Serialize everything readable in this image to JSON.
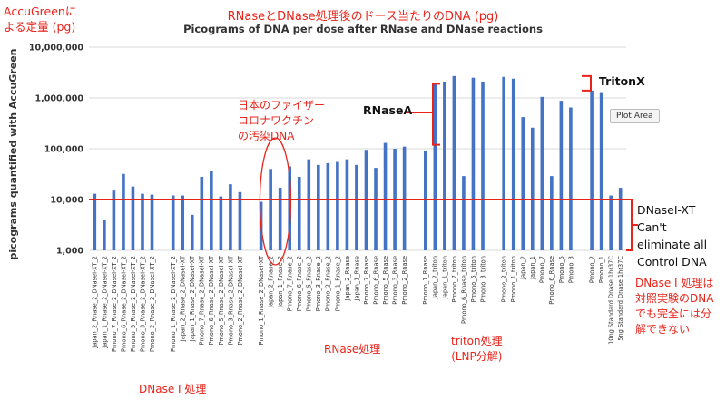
{
  "titles": {
    "jp_title": "RNaseとDNase処理後のドース当たりのDNA (pg)",
    "en_title": "Picograms of DNA per dose after RNase and DNase reactions"
  },
  "annotations": {
    "accugreen_note": "AccuGreenに\nよる定量 (pg)",
    "pfizer_note": "日本のファイザー\nコロナワクチン\nの汚染DNA",
    "rnasea_label": "RNaseA",
    "tritonx_label": "TritonX",
    "dnasext_note": "DNaseI-XT\nCan't\neliminate all\nControl DNA",
    "dnase_jp_note": "DNase I 処理は\n対照実験のDNA\nでも完全には分\n解できない",
    "group_dnase": "DNase I 処理",
    "group_rnase": "RNase処理",
    "group_triton": "triton処理\n(LNP分解)",
    "plot_area_tag": "Plot Area"
  },
  "colors": {
    "bar": "#4472c4",
    "annotation": "#e8231a",
    "grid": "#d9d9d9"
  },
  "chart_data": {
    "type": "bar",
    "y_scale": "log",
    "ylabel": "picograms quantified with AccuGreen",
    "ylim": [
      1000,
      10000000
    ],
    "y_ticks": [
      1000,
      10000,
      100000,
      1000000,
      10000000
    ],
    "y_tick_labels": [
      "1,000",
      "10,000",
      "100,000",
      "1,000,000",
      "10,000,000"
    ],
    "reference_line": 10000,
    "gaps_after": [
      6,
      14,
      30,
      37,
      45
    ],
    "categories": [
      "Japan_2_Rnase_2_DNaseI-XT_2",
      "Japan_1_Rnase_2_DNaseI-XT_2",
      "Pmono_7_Rnase_2_DNaseI-XT_2",
      "Pmono_6_Rnase_2_DNaseI-XT_2",
      "Pmono_5_Rnase_2_DNaseI-XT_2",
      "Pmono_3_Rnase_2_DNaseI-XT_2",
      "Pmono_2_Rnase_2_DNaseI-XT_2",
      "Pmono_1_Rnase_2_DNaseI-XT_2",
      "Japan_2_Rnase_2_DNaseI-XT",
      "Japan_1_Rnase_2_DNaseI-XT",
      "Pmono_7_Rnase_2_DNaseI-XT",
      "Pmono_6_Rnase_2_DNaseI-XT",
      "Pmono_5_Rnase_2_DNaseI-XT",
      "Pmono_3_Rnase_2_DNaseI-XT",
      "Pmono_2_Rnase_2_DNaseI-XT",
      "Pmono_1_Rnase_2_DNaseI-XT",
      "Japan_2_Rnase_2",
      "Japan_1_Rnase_2",
      "Pmono_7_Rnase_2",
      "Pmono_6_Rnase_2",
      "Pmono_5_Rnase_2",
      "Pmono_3_Rnase_2",
      "Pmono_2_Rnase_2",
      "Pmono_1_Rnase_2",
      "Japan_2_Rnase",
      "Japan_1_Rnase",
      "Pmono_7_Rnase",
      "Pmono_6_Rnase",
      "Pmono_5_Rnase",
      "Pmono_3_Rnase",
      "Pmono_2_Rnase",
      "Pmono_1_Rnase",
      "Japan_2_triton",
      "Japan_1_triton",
      "Pmono_7_triton",
      "Pmono_6_Rnase_triton",
      "Pmono_5_triton",
      "Pmono_3_triton",
      "Pmono_2_triton",
      "Pmono_1_triton",
      "Japan_2",
      "Japan_1",
      "Pmono_7",
      "Pmono_6_Rnase",
      "Pmono_5",
      "Pmono_3",
      "Pmono_2",
      "Pmono_1",
      "10ng Standard Dnase 1hr37C",
      "5ng Standard Dnase 1hr37C"
    ],
    "values": [
      13000,
      4000,
      15000,
      32000,
      18000,
      13000,
      12500,
      12000,
      12000,
      5000,
      28000,
      36000,
      11500,
      20000,
      14000,
      9000,
      40000,
      17000,
      45000,
      28000,
      62000,
      48000,
      52000,
      55000,
      62000,
      48000,
      95000,
      42000,
      130000,
      100000,
      110000,
      90000,
      2000000,
      2100000,
      2700000,
      29000,
      2500000,
      2100000,
      2600000,
      2400000,
      420000,
      260000,
      1050000,
      29000,
      880000,
      650000,
      1400000,
      1300000,
      12000,
      17000
    ]
  }
}
